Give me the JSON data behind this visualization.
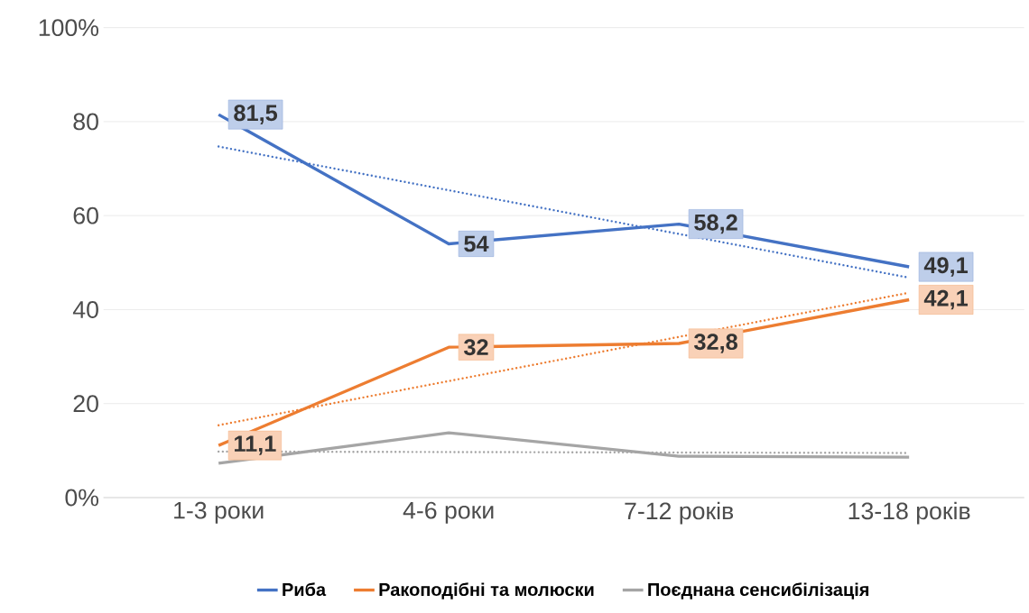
{
  "chart_data": {
    "type": "line",
    "categories": [
      "1-3 роки",
      "4-6 роки",
      "7-12 років",
      "13-18 років"
    ],
    "series": [
      {
        "name": "Риба",
        "color": "#4472c4",
        "values": [
          81.5,
          54,
          58.2,
          49.1
        ],
        "value_labels": [
          "81,5",
          "54",
          "58,2",
          "49,1"
        ],
        "line_style": "solid"
      },
      {
        "name": "Ракоподібні та молюски",
        "color": "#ed7d31",
        "values": [
          11.1,
          32,
          32.8,
          42.1
        ],
        "value_labels": [
          "11,1",
          "32",
          "32,8",
          "42,1"
        ],
        "line_style": "solid"
      },
      {
        "name": "Поєднана сенсибілізація",
        "color": "#a5a5a5",
        "values": [
          7.3,
          13.8,
          8.8,
          8.6
        ],
        "line_style": "solid"
      },
      {
        "type": "line",
        "color": "#4472c4",
        "values": [
          74.7,
          65.4,
          56.1,
          46.8
        ],
        "line_style": "dotted"
      },
      {
        "type": "line",
        "color": "#ed7d31",
        "values": [
          15.4,
          24.8,
          34.2,
          43.6
        ],
        "line_style": "dotted"
      },
      {
        "type": "line",
        "color": "#a5a5a5",
        "values": [
          9.8,
          9.7,
          9.6,
          9.5
        ],
        "line_style": "dotted"
      }
    ],
    "ylim": [
      0,
      100
    ],
    "yticks": [
      {
        "value": 0,
        "label": "0%"
      },
      20,
      40,
      60,
      80,
      {
        "value": 100,
        "label": "100%"
      }
    ],
    "grid": "y",
    "legend": "bottom"
  }
}
